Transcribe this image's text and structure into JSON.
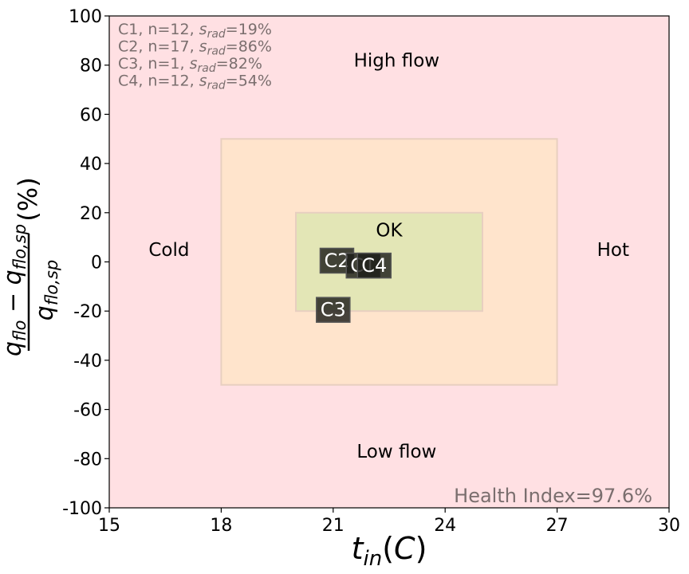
{
  "chart_data": {
    "type": "scatter",
    "xlim": [
      15,
      30
    ],
    "ylim": [
      -100,
      100
    ],
    "xticks": [
      15,
      18,
      21,
      24,
      27,
      30
    ],
    "yticks": [
      100,
      80,
      60,
      40,
      20,
      0,
      -20,
      -40,
      -60,
      -80,
      -100
    ],
    "xlabel": "t_in(C)",
    "ylabel": "(q_flo − q_flo,sp) / q_flo,sp (%)",
    "zones": [
      {
        "name": "outer",
        "x": [
          15,
          30
        ],
        "y": [
          -100,
          100
        ],
        "color": "#ffe0e3"
      },
      {
        "name": "caution",
        "x": [
          18,
          27
        ],
        "y": [
          -50,
          50
        ],
        "color": "#ffe4cc"
      },
      {
        "name": "ok",
        "x": [
          20,
          25
        ],
        "y": [
          -20,
          20
        ],
        "color": "#e3e6b6"
      }
    ],
    "region_labels": [
      {
        "text": "High flow",
        "x": 22.7,
        "y": 82
      },
      {
        "text": "Low flow",
        "x": 22.7,
        "y": -77
      },
      {
        "text": "Cold",
        "x": 16.6,
        "y": 5
      },
      {
        "text": "Hot",
        "x": 28.5,
        "y": 5
      },
      {
        "text": "OK",
        "x": 22.5,
        "y": 13
      }
    ],
    "clusters": [
      {
        "label": "C1",
        "x": 21.8,
        "y": -1.5,
        "n": 12,
        "s_rad": "19%"
      },
      {
        "label": "C2",
        "x": 21.1,
        "y": 0.5,
        "n": 17,
        "s_rad": "86%"
      },
      {
        "label": "C3",
        "x": 21.0,
        "y": -19.5,
        "n": 1,
        "s_rad": "82%"
      },
      {
        "label": "C4",
        "x": 22.1,
        "y": -1.5,
        "n": 12,
        "s_rad": "54%"
      }
    ],
    "legend_lines": [
      {
        "prefix": "C1, n=12, ",
        "s": "s",
        "sub": "rad",
        "value": "=19%"
      },
      {
        "prefix": "C2, n=17, ",
        "s": "s",
        "sub": "rad",
        "value": "=86%"
      },
      {
        "prefix": "C3, n=1, ",
        "s": "s",
        "sub": "rad",
        "value": "=82%"
      },
      {
        "prefix": "C4, n=12, ",
        "s": "s",
        "sub": "rad",
        "value": "=54%"
      }
    ],
    "health_index": "Health Index=97.6%",
    "grid": false
  }
}
